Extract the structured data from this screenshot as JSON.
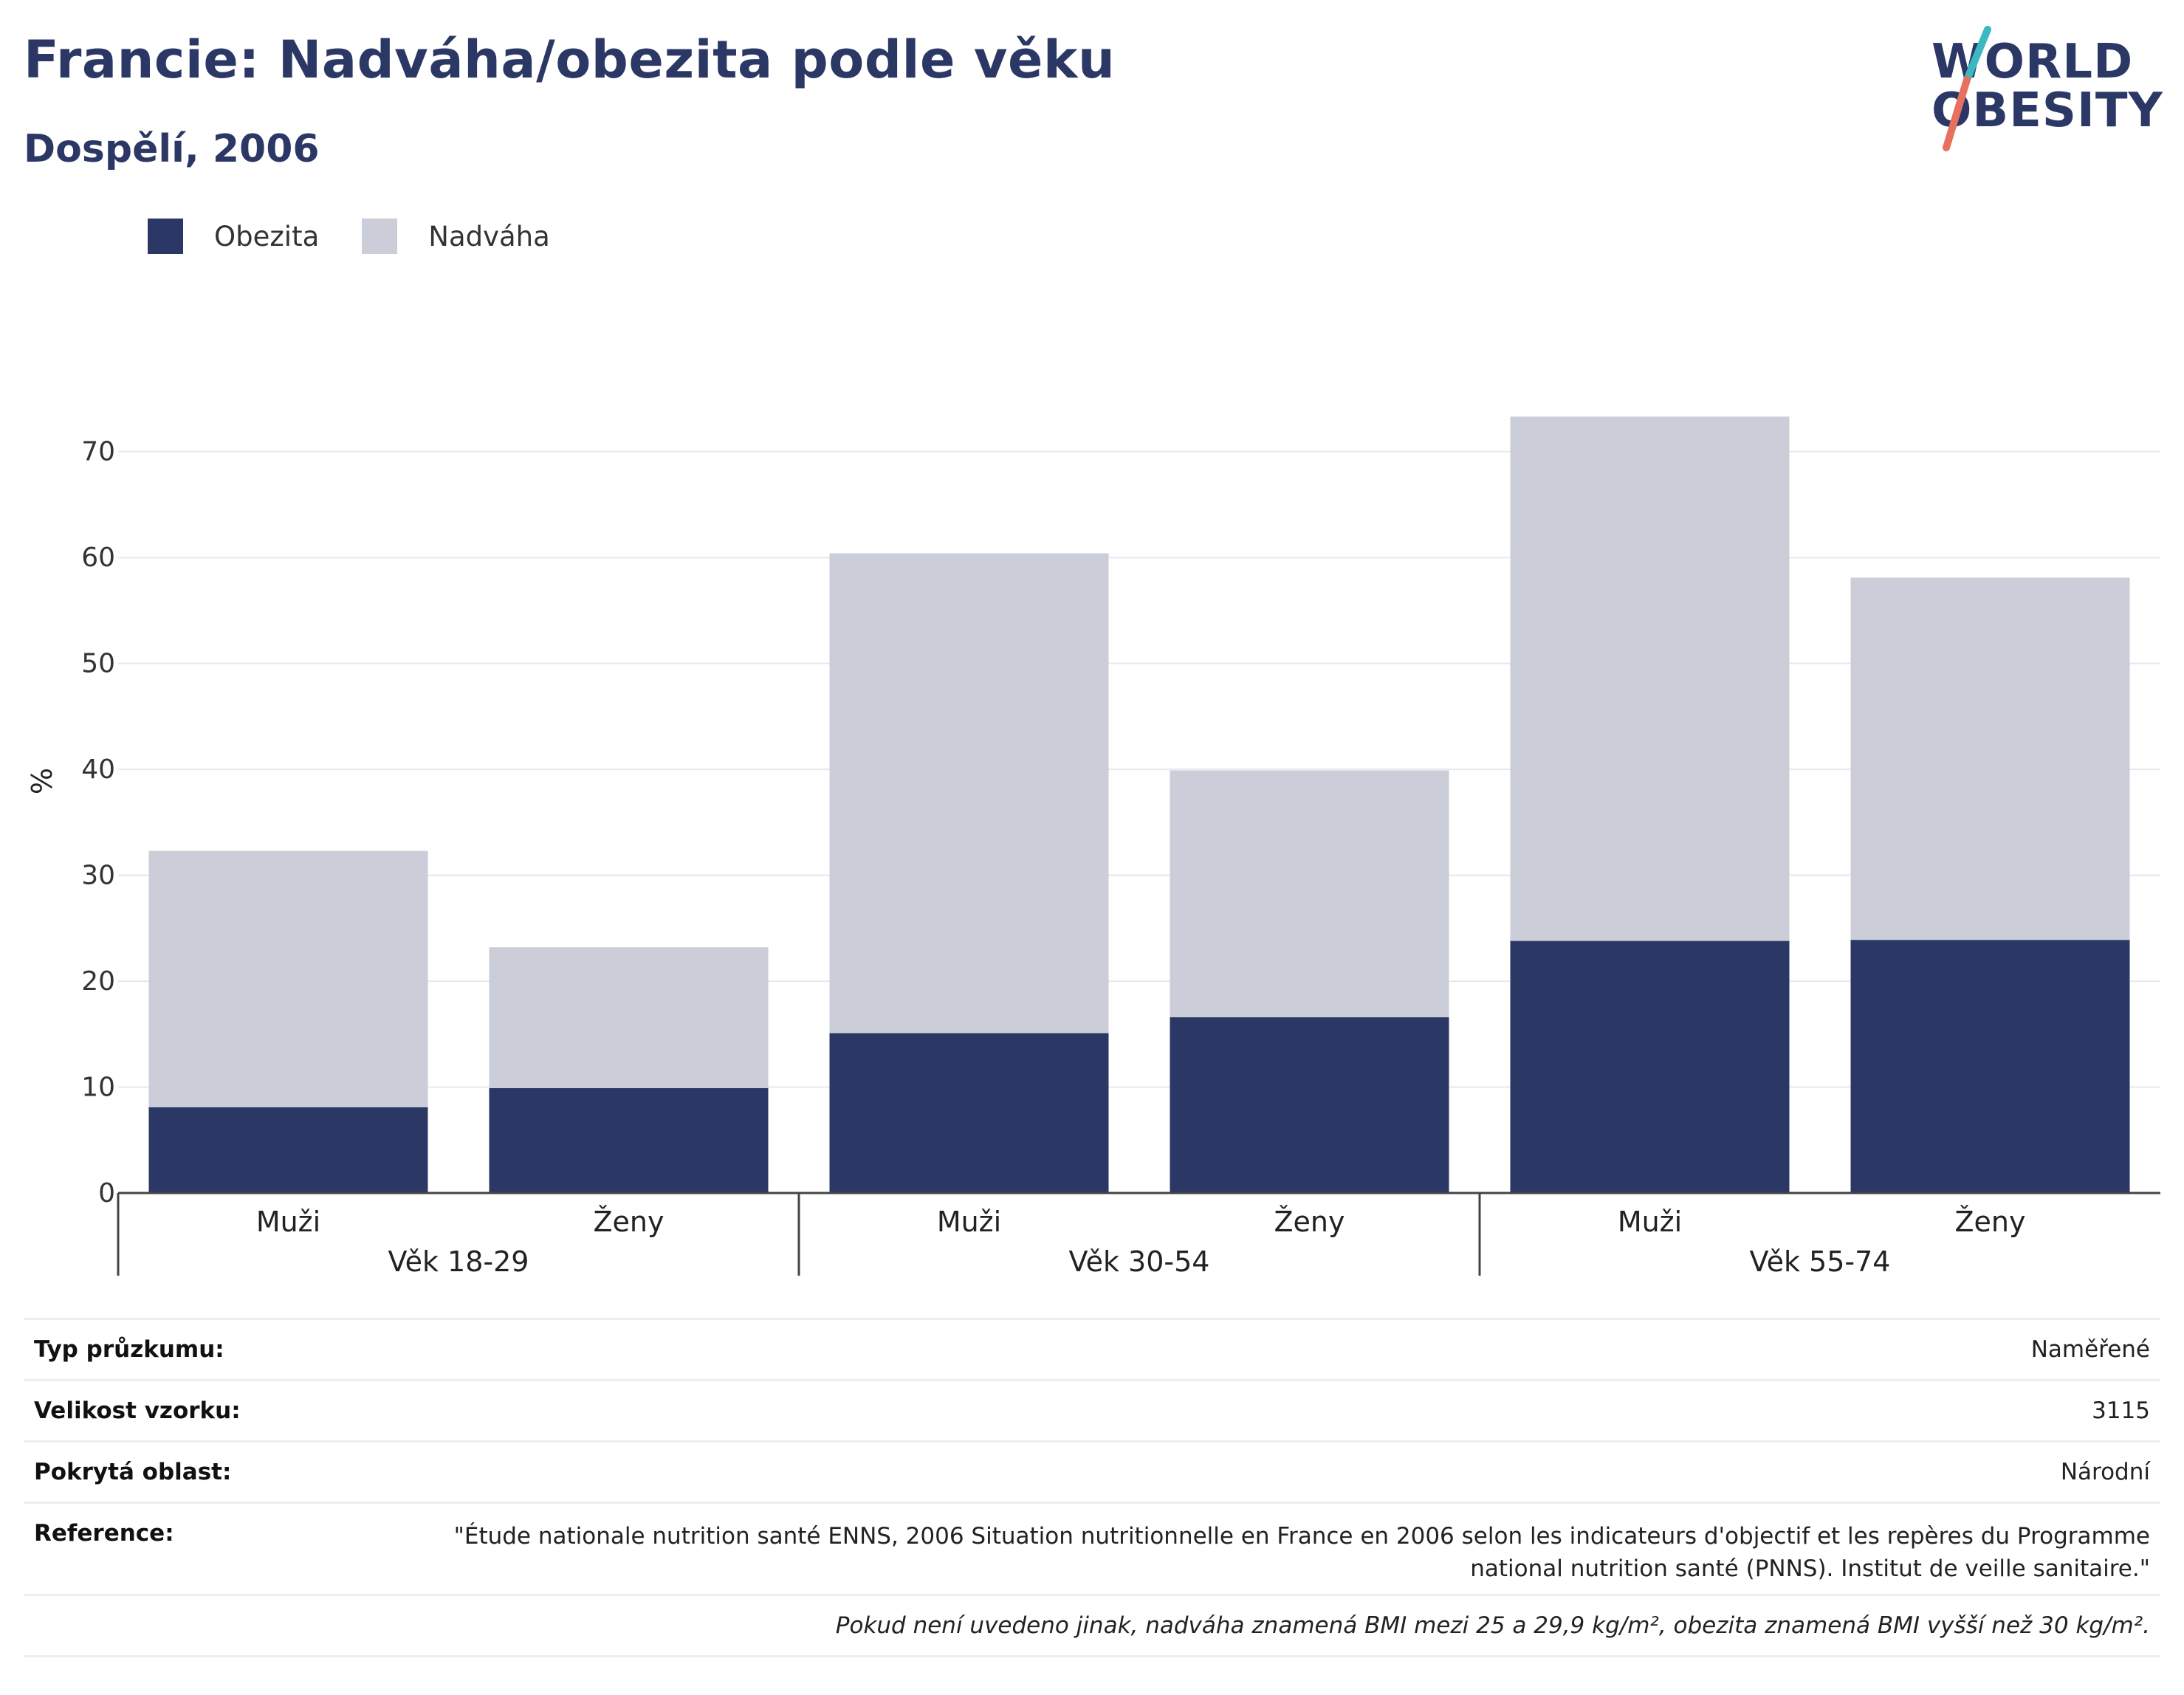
{
  "header": {
    "title": "Francie: Nadváha/obezita podle věku",
    "subtitle": "Dospělí, 2006"
  },
  "logo": {
    "line1": "WORLD",
    "line2": "OBESITY",
    "colors": {
      "text": "#2b3865",
      "slash_top": "#3bb8c1",
      "slash_bottom": "#e8705f"
    }
  },
  "colors": {
    "obezita": "#2b3865",
    "nadvaha": "#cbcdd9",
    "grid": "#e6e8ee",
    "axis": "#444444"
  },
  "chart_data": {
    "type": "bar",
    "stacked": true,
    "title": "Francie: Nadváha/obezita podle věku",
    "subtitle": "Dospělí, 2006",
    "ylabel": "%",
    "ylim": [
      0,
      75
    ],
    "yticks": [
      0,
      10,
      20,
      30,
      40,
      50,
      60,
      70
    ],
    "grid": true,
    "legend_position": "top-left",
    "groups": [
      "Věk 18-29",
      "Věk 30-54",
      "Věk 55-74"
    ],
    "categories": [
      "Muži",
      "Ženy",
      "Muži",
      "Ženy",
      "Muži",
      "Ženy"
    ],
    "category_group": [
      0,
      0,
      1,
      1,
      2,
      2
    ],
    "series": [
      {
        "name": "Obezita",
        "color": "#2b3865",
        "values": [
          8.1,
          9.9,
          15.1,
          16.6,
          23.8,
          23.9
        ]
      },
      {
        "name": "Nadváha",
        "color": "#cbcdd9",
        "values": [
          24.2,
          13.3,
          45.3,
          23.3,
          49.5,
          34.2
        ]
      }
    ],
    "totals": [
      32.3,
      23.2,
      60.4,
      39.9,
      73.3,
      58.1
    ]
  },
  "info": {
    "rows": [
      {
        "label": "Typ průzkumu:",
        "value": "Naměřené"
      },
      {
        "label": "Velikost vzorku:",
        "value": "3115"
      },
      {
        "label": "Pokrytá oblast:",
        "value": "Národní"
      },
      {
        "label": "Reference:",
        "value": "\"Étude nationale nutrition santé ENNS, 2006 Situation nutritionnelle en France en 2006 selon les indicateurs d'objectif et les repères du Programme national nutrition santé (PNNS). Institut de veille sanitaire.\""
      }
    ],
    "note": "Pokud není uvedeno jinak, nadváha znamená BMI mezi 25 a 29,9 kg/m², obezita znamená BMI vyšší než 30 kg/m²."
  }
}
